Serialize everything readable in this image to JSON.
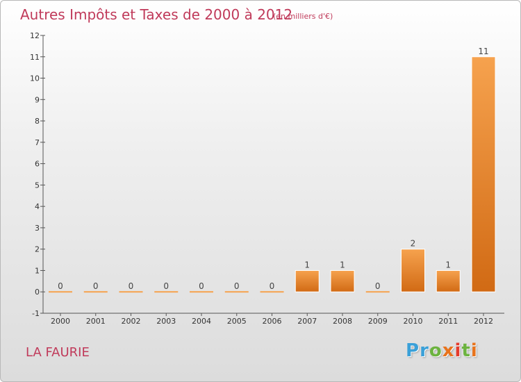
{
  "header": {
    "title": "Autres Impôts et Taxes de 2000 à 2012",
    "unit": "(en milliers d'€)"
  },
  "footer": {
    "commune": "LA FAURIE",
    "logo_letters": [
      {
        "ch": "P",
        "color": "#3aa0d8"
      },
      {
        "ch": "r",
        "color": "#3aa0d8"
      },
      {
        "ch": "o",
        "color": "#6cb33f"
      },
      {
        "ch": "x",
        "color": "#e8731c"
      },
      {
        "ch": "i",
        "color": "#e53b2c"
      },
      {
        "ch": "t",
        "color": "#6cb33f"
      },
      {
        "ch": "i",
        "color": "#e8731c"
      }
    ]
  },
  "colors": {
    "accent": "#c03a5a",
    "bar_light": "#f6a24e",
    "bar_dark": "#d16a14"
  },
  "chart_data": {
    "type": "bar",
    "categories": [
      "2000",
      "2001",
      "2002",
      "2003",
      "2004",
      "2005",
      "2006",
      "2007",
      "2008",
      "2009",
      "2010",
      "2011",
      "2012"
    ],
    "values": [
      0,
      0,
      0,
      0,
      0,
      0,
      0,
      1,
      1,
      0,
      2,
      1,
      11
    ],
    "data_labels": [
      "0",
      "0",
      "0",
      "0",
      "0",
      "0",
      "0",
      "1",
      "1",
      "0",
      "2",
      "1",
      "11"
    ],
    "yticks": [
      -1,
      0,
      1,
      2,
      3,
      4,
      5,
      6,
      7,
      8,
      9,
      10,
      11,
      12
    ],
    "ylim": [
      -1,
      12
    ],
    "grid": false
  }
}
